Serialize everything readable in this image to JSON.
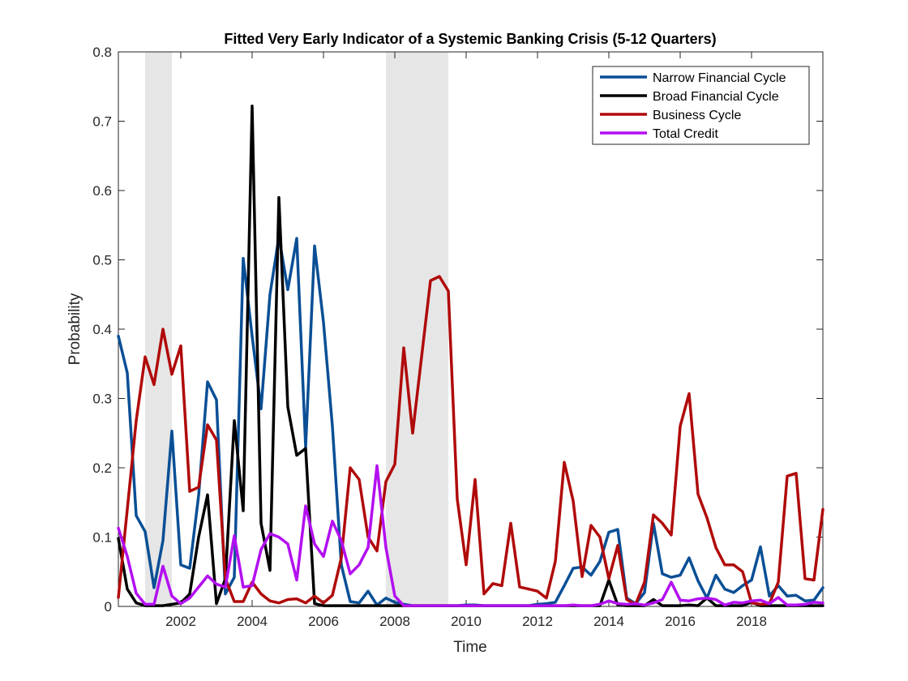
{
  "chart_data": {
    "type": "line",
    "title": "Fitted Very Early Indicator of a Systemic Banking Crisis (5-12 Quarters)",
    "xlabel": "Time",
    "ylabel": "Probability",
    "xlim": [
      2000.25,
      2020.0
    ],
    "ylim": [
      0,
      0.8
    ],
    "xticks": [
      2002,
      2004,
      2006,
      2008,
      2010,
      2012,
      2014,
      2016,
      2018
    ],
    "xtick_labels": [
      "2002",
      "2004",
      "2006",
      "2008",
      "2010",
      "2012",
      "2014",
      "2016",
      "2018"
    ],
    "yticks": [
      0,
      0.1,
      0.2,
      0.3,
      0.4,
      0.5,
      0.6,
      0.7,
      0.8
    ],
    "ytick_labels": [
      "0",
      "0.1",
      "0.2",
      "0.3",
      "0.4",
      "0.5",
      "0.6",
      "0.7",
      "0.8"
    ],
    "grid": false,
    "legend_position": "top-right",
    "shaded_periods": [
      [
        2001.0,
        2001.75
      ],
      [
        2007.75,
        2009.5
      ]
    ],
    "x": [
      2000.25,
      2000.5,
      2000.75,
      2001.0,
      2001.25,
      2001.5,
      2001.75,
      2002.0,
      2002.25,
      2002.5,
      2002.75,
      2003.0,
      2003.25,
      2003.5,
      2003.75,
      2004.0,
      2004.25,
      2004.5,
      2004.75,
      2005.0,
      2005.25,
      2005.5,
      2005.75,
      2006.0,
      2006.25,
      2006.5,
      2006.75,
      2007.0,
      2007.25,
      2007.5,
      2007.75,
      2008.0,
      2008.25,
      2008.5,
      2008.75,
      2009.0,
      2009.25,
      2009.5,
      2009.75,
      2010.0,
      2010.25,
      2010.5,
      2010.75,
      2011.0,
      2011.25,
      2011.5,
      2011.75,
      2012.0,
      2012.25,
      2012.5,
      2012.75,
      2013.0,
      2013.25,
      2013.5,
      2013.75,
      2014.0,
      2014.25,
      2014.5,
      2014.75,
      2015.0,
      2015.25,
      2015.5,
      2015.75,
      2016.0,
      2016.25,
      2016.5,
      2016.75,
      2017.0,
      2017.25,
      2017.5,
      2017.75,
      2018.0,
      2018.25,
      2018.5,
      2018.75,
      2019.0,
      2019.25,
      2019.5,
      2019.75,
      2020.0
    ],
    "series": [
      {
        "name": "Narrow Financial Cycle",
        "color": "#0a4f96",
        "values": [
          0.39,
          0.337,
          0.131,
          0.108,
          0.027,
          0.095,
          0.253,
          0.06,
          0.055,
          0.16,
          0.324,
          0.298,
          0.018,
          0.042,
          0.502,
          0.39,
          0.285,
          0.45,
          0.533,
          0.457,
          0.531,
          0.23,
          0.52,
          0.41,
          0.26,
          0.06,
          0.007,
          0.005,
          0.022,
          0.002,
          0.012,
          0.006,
          0.003,
          0.001,
          0.001,
          0.001,
          0.001,
          0.001,
          0.001,
          0.002,
          0.002,
          0.001,
          0.001,
          0.001,
          0.001,
          0.001,
          0.001,
          0.003,
          0.004,
          0.006,
          0.03,
          0.055,
          0.057,
          0.045,
          0.065,
          0.107,
          0.111,
          0.012,
          0.004,
          0.02,
          0.12,
          0.047,
          0.042,
          0.045,
          0.07,
          0.037,
          0.012,
          0.045,
          0.025,
          0.02,
          0.03,
          0.038,
          0.086,
          0.015,
          0.03,
          0.015,
          0.016,
          0.008,
          0.009,
          0.027
        ]
      },
      {
        "name": "Broad Financial Cycle",
        "color": "#000000",
        "values": [
          0.098,
          0.025,
          0.005,
          0.001,
          0.001,
          0.001,
          0.003,
          0.005,
          0.018,
          0.1,
          0.161,
          0.004,
          0.04,
          0.268,
          0.138,
          0.722,
          0.12,
          0.052,
          0.59,
          0.288,
          0.218,
          0.228,
          0.004,
          0.001,
          0.001,
          0.001,
          0.001,
          0.001,
          0.001,
          0.001,
          0.001,
          0.001,
          0.001,
          0.001,
          0.001,
          0.001,
          0.001,
          0.001,
          0.001,
          0.001,
          0.001,
          0.001,
          0.001,
          0.001,
          0.001,
          0.001,
          0.001,
          0.001,
          0.001,
          0.001,
          0.001,
          0.001,
          0.001,
          0.001,
          0.001,
          0.038,
          0.002,
          0.001,
          0.001,
          0.001,
          0.01,
          0.001,
          0.001,
          0.001,
          0.002,
          0.001,
          0.012,
          0.001,
          0.001,
          0.001,
          0.001,
          0.006,
          0.001,
          0.001,
          0.001,
          0.001,
          0.001,
          0.001,
          0.001,
          0.001
        ]
      },
      {
        "name": "Business Cycle",
        "color": "#b00a0a",
        "values": [
          0.013,
          0.14,
          0.268,
          0.36,
          0.32,
          0.4,
          0.335,
          0.376,
          0.166,
          0.172,
          0.262,
          0.24,
          0.04,
          0.007,
          0.007,
          0.035,
          0.018,
          0.008,
          0.005,
          0.01,
          0.011,
          0.005,
          0.015,
          0.005,
          0.016,
          0.07,
          0.2,
          0.183,
          0.1,
          0.08,
          0.18,
          0.205,
          0.373,
          0.25,
          0.36,
          0.47,
          0.476,
          0.455,
          0.155,
          0.06,
          0.183,
          0.018,
          0.033,
          0.03,
          0.12,
          0.028,
          0.025,
          0.022,
          0.012,
          0.065,
          0.208,
          0.152,
          0.043,
          0.117,
          0.1,
          0.04,
          0.088,
          0.01,
          0.003,
          0.035,
          0.132,
          0.12,
          0.103,
          0.26,
          0.307,
          0.162,
          0.128,
          0.085,
          0.06,
          0.06,
          0.05,
          0.005,
          0.003,
          0.004,
          0.035,
          0.188,
          0.192,
          0.04,
          0.038,
          0.14
        ]
      },
      {
        "name": "Total Credit",
        "color": "#b30ff0",
        "values": [
          0.113,
          0.072,
          0.019,
          0.003,
          0.003,
          0.058,
          0.015,
          0.004,
          0.012,
          0.028,
          0.044,
          0.032,
          0.028,
          0.102,
          0.028,
          0.03,
          0.082,
          0.105,
          0.1,
          0.09,
          0.038,
          0.145,
          0.09,
          0.072,
          0.123,
          0.095,
          0.047,
          0.06,
          0.085,
          0.203,
          0.085,
          0.015,
          0.001,
          0.001,
          0.001,
          0.001,
          0.001,
          0.001,
          0.001,
          0.001,
          0.001,
          0.001,
          0.001,
          0.001,
          0.001,
          0.001,
          0.001,
          0.001,
          0.001,
          0.001,
          0.001,
          0.002,
          0.001,
          0.001,
          0.003,
          0.008,
          0.004,
          0.003,
          0.004,
          0.002,
          0.005,
          0.01,
          0.035,
          0.009,
          0.008,
          0.011,
          0.012,
          0.01,
          0.002,
          0.006,
          0.005,
          0.008,
          0.009,
          0.004,
          0.013,
          0.002,
          0.002,
          0.003,
          0.006,
          0.005
        ]
      }
    ]
  }
}
